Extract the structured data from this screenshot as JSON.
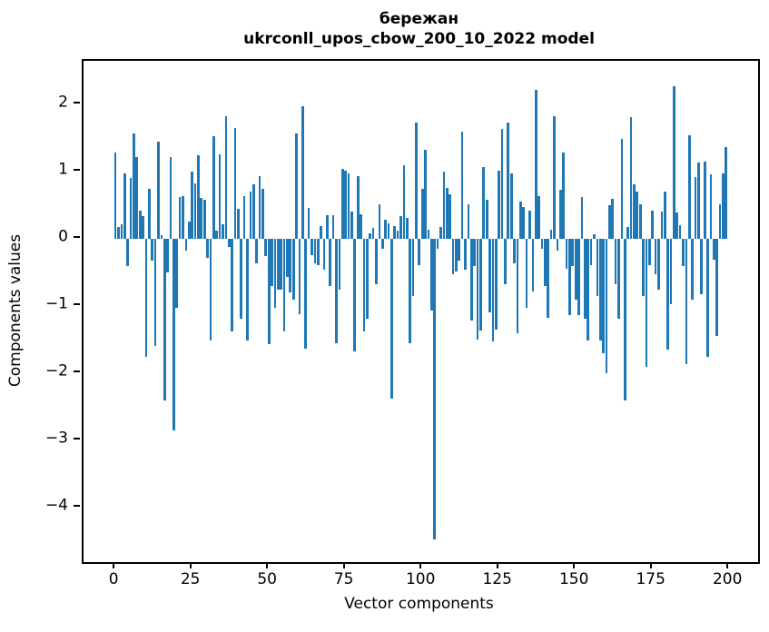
{
  "title": {
    "line1": "бережан",
    "line2": "ukrconll_upos_cbow_200_10_2022 model"
  },
  "chart_data": {
    "type": "bar",
    "title": "бережан — ukrconll_upos_cbow_200_10_2022 model",
    "xlabel": "Vector components",
    "ylabel": "Components values",
    "x_ticks": [
      0,
      25,
      50,
      75,
      100,
      125,
      150,
      175,
      200
    ],
    "y_ticks": [
      -4,
      -3,
      -2,
      -1,
      0,
      1,
      2
    ],
    "xlim": [
      -10.4,
      209.4
    ],
    "ylim": [
      -4.81,
      2.65
    ],
    "grid": false,
    "legend": false,
    "bar_color": "#1f77b4",
    "n_components": 200,
    "values": [
      1.28,
      0.18,
      0.22,
      0.97,
      -0.4,
      0.9,
      1.57,
      1.22,
      0.42,
      0.34,
      -1.75,
      0.75,
      -0.32,
      -1.6,
      1.45,
      0.05,
      -2.4,
      -0.5,
      1.22,
      -2.85,
      -1.02,
      0.62,
      0.63,
      -0.17,
      0.26,
      1.0,
      0.83,
      1.24,
      0.61,
      0.58,
      -0.28,
      -1.51,
      1.53,
      0.12,
      1.26,
      0.22,
      1.82,
      -0.12,
      -1.38,
      1.65,
      0.45,
      -1.19,
      0.63,
      -1.51,
      0.7,
      0.81,
      -0.36,
      0.94,
      0.75,
      -0.26,
      -1.57,
      -0.7,
      -1.02,
      -0.75,
      -0.75,
      -1.38,
      -0.56,
      -0.8,
      -0.9,
      1.57,
      -1.12,
      1.97,
      -1.63,
      0.46,
      -0.24,
      -0.36,
      -0.39,
      0.19,
      -0.46,
      0.35,
      -0.7,
      0.35,
      -1.55,
      -0.75,
      1.04,
      1.01,
      0.97,
      0.4,
      -1.68,
      0.94,
      0.36,
      -1.38,
      -1.19,
      0.08,
      0.16,
      -0.68,
      0.51,
      -0.15,
      0.28,
      0.23,
      -2.38,
      0.19,
      0.12,
      0.34,
      1.1,
      0.31,
      -1.55,
      -0.85,
      1.73,
      -0.39,
      0.75,
      1.33,
      0.13,
      -1.07,
      -4.47,
      -0.15,
      0.18,
      1.0,
      0.76,
      0.67,
      -0.53,
      -0.49,
      -0.32,
      1.59,
      -0.46,
      0.52,
      -1.22,
      -0.41,
      -1.5,
      -1.36,
      1.07,
      0.58,
      -1.09,
      -1.53,
      -1.35,
      1.02,
      1.64,
      -0.68,
      1.73,
      0.97,
      -0.36,
      -1.41,
      0.56,
      0.47,
      -1.02,
      0.42,
      -0.78,
      2.22,
      0.63,
      -0.15,
      -0.7,
      -1.17,
      0.13,
      1.83,
      -0.17,
      0.73,
      1.28,
      -0.44,
      -1.14,
      -0.41,
      -0.9,
      -1.14,
      0.62,
      -1.19,
      -1.51,
      -0.39,
      0.07,
      -0.85,
      -1.51,
      -1.7,
      -2.0,
      0.5,
      0.6,
      -0.68,
      -1.19,
      1.49,
      -2.4,
      0.18,
      1.81,
      0.81,
      0.71,
      0.52,
      -0.85,
      -1.9,
      -0.39,
      0.42,
      -0.53,
      -0.75,
      0.4,
      0.71,
      -1.65,
      -0.97,
      2.27,
      0.39,
      0.2,
      -0.41,
      -1.87,
      1.54,
      -0.9,
      0.92,
      1.14,
      -0.83,
      1.15,
      -1.75,
      0.96,
      -0.31,
      -1.45,
      0.52,
      0.97,
      1.37
    ]
  }
}
